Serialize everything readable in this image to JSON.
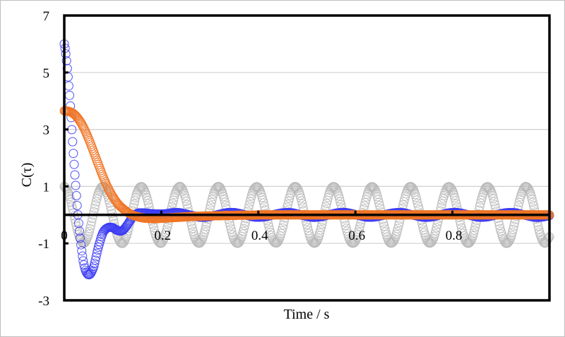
{
  "chart_data": {
    "type": "scatter",
    "title": "",
    "xlabel": "Time / s",
    "ylabel": "C(τ)",
    "xlim": [
      0,
      1
    ],
    "ylim": [
      -3,
      7
    ],
    "xticks": [
      {
        "value": 0,
        "label": "0"
      },
      {
        "value": 0.2,
        "label": "0.2"
      },
      {
        "value": 0.4,
        "label": "0.4"
      },
      {
        "value": 0.6,
        "label": "0.6"
      },
      {
        "value": 0.8,
        "label": "0.8"
      }
    ],
    "yticks": [
      {
        "value": 7,
        "label": "7"
      },
      {
        "value": 5,
        "label": "5"
      },
      {
        "value": 3,
        "label": "3"
      },
      {
        "value": 1,
        "label": "1"
      },
      {
        "value": -1,
        "label": "-1"
      },
      {
        "value": -3,
        "label": "-3"
      }
    ],
    "grid": {
      "horizontal": true,
      "vertical": false,
      "lines_at": [
        5,
        3,
        1,
        -1
      ]
    },
    "legend": null,
    "marker": "open-circle",
    "x_step": 0.01,
    "x": [
      0,
      0.01,
      0.02,
      0.03,
      0.04,
      0.05,
      0.06,
      0.07,
      0.08,
      0.09,
      0.1,
      0.11,
      0.12,
      0.13,
      0.14,
      0.15,
      0.16,
      0.17,
      0.18,
      0.19,
      0.2,
      0.21,
      0.22,
      0.23,
      0.24,
      0.25,
      0.26,
      0.27,
      0.28,
      0.29,
      0.3,
      0.31,
      0.32,
      0.33,
      0.34,
      0.35,
      0.36,
      0.37,
      0.38,
      0.39,
      0.4,
      0.41,
      0.42,
      0.43,
      0.44,
      0.45,
      0.46,
      0.47,
      0.48,
      0.49,
      0.5,
      0.51,
      0.52,
      0.53,
      0.54,
      0.55,
      0.56,
      0.57,
      0.58,
      0.59,
      0.6,
      0.61,
      0.62,
      0.63,
      0.64,
      0.65,
      0.66,
      0.67,
      0.68,
      0.69,
      0.7,
      0.71,
      0.72,
      0.73,
      0.74,
      0.75,
      0.76,
      0.77,
      0.78,
      0.79,
      0.8,
      0.81,
      0.82,
      0.83,
      0.84,
      0.85,
      0.86,
      0.87,
      0.88,
      0.89,
      0.9,
      0.91,
      0.92,
      0.93,
      0.94,
      0.95,
      0.96,
      0.97,
      0.98,
      0.99,
      1.0
    ],
    "series": [
      {
        "name": "gray-cosine",
        "color": "#b8b8b8",
        "values": [
          1.0,
          0.7,
          -0.01,
          -0.72,
          -1.0,
          -0.68,
          0.04,
          0.74,
          1.0,
          0.66,
          -0.07,
          -0.76,
          -1.0,
          -0.64,
          0.1,
          0.78,
          0.99,
          0.62,
          -0.12,
          -0.79,
          -0.99,
          -0.59,
          0.15,
          0.81,
          0.99,
          0.58,
          -0.18,
          -0.83,
          -0.98,
          -0.55,
          0.21,
          0.84,
          0.98,
          0.53,
          -0.23,
          -0.86,
          -0.97,
          -0.5,
          0.26,
          0.87,
          0.96,
          0.48,
          -0.29,
          -0.88,
          -0.95,
          -0.46,
          0.31,
          0.9,
          0.95,
          0.43,
          -0.34,
          -0.91,
          -0.94,
          -0.41,
          0.36,
          0.92,
          0.93,
          0.38,
          -0.39,
          -0.93,
          -0.92,
          -0.36,
          0.41,
          0.94,
          0.9,
          0.33,
          -0.44,
          -0.95,
          -0.89,
          -0.31,
          0.46,
          0.96,
          0.88,
          0.28,
          -0.49,
          -0.96,
          -0.87,
          -0.25,
          0.51,
          0.97,
          0.85,
          0.23,
          -0.54,
          -0.98,
          -0.84,
          -0.2,
          0.56,
          0.98,
          0.82,
          0.17,
          -0.58,
          -0.99,
          -0.81,
          -0.14,
          0.6,
          0.99,
          0.79,
          0.12,
          -0.63,
          -0.99,
          -0.77
        ]
      },
      {
        "name": "blue",
        "color": "#3c3cf5",
        "values": [
          6.0,
          4.4,
          1.85,
          -0.35,
          -1.7,
          -2.1,
          -1.85,
          -1.15,
          -0.62,
          -0.45,
          -0.45,
          -0.55,
          -0.55,
          -0.35,
          -0.1,
          0.05,
          0.07,
          0.06,
          0.04,
          0.03,
          0.03,
          0.04,
          0.07,
          0.08,
          0.07,
          0.03,
          -0.01,
          -0.05,
          -0.08,
          -0.08,
          -0.06,
          -0.02,
          0.02,
          0.06,
          0.08,
          0.08,
          0.05,
          0.01,
          -0.03,
          -0.07,
          -0.08,
          -0.07,
          -0.04,
          0.0,
          0.04,
          0.07,
          0.08,
          0.07,
          0.03,
          -0.01,
          -0.05,
          -0.08,
          -0.08,
          -0.06,
          -0.02,
          0.02,
          0.06,
          0.08,
          0.08,
          0.05,
          0.01,
          -0.03,
          -0.07,
          -0.08,
          -0.07,
          -0.04,
          0.0,
          0.04,
          0.07,
          0.08,
          0.07,
          0.03,
          -0.01,
          -0.05,
          -0.08,
          -0.08,
          -0.06,
          -0.02,
          0.02,
          0.06,
          0.08,
          0.08,
          0.05,
          0.01,
          -0.03,
          -0.07,
          -0.08,
          -0.07,
          -0.04,
          0.0,
          0.04,
          0.07,
          0.08,
          0.07,
          0.03,
          -0.01,
          -0.05,
          -0.08,
          -0.08,
          -0.06,
          -0.02
        ]
      },
      {
        "name": "orange",
        "color": "#f07424",
        "values": [
          3.65,
          3.63,
          3.54,
          3.35,
          3.06,
          2.68,
          2.24,
          1.78,
          1.34,
          0.95,
          0.64,
          0.4,
          0.23,
          0.1,
          0.0,
          -0.06,
          -0.1,
          -0.12,
          -0.13,
          -0.13,
          -0.12,
          -0.11,
          -0.1,
          -0.09,
          -0.08,
          -0.07,
          -0.06,
          -0.05,
          -0.05,
          -0.04,
          -0.04,
          -0.03,
          -0.03,
          -0.02,
          -0.02,
          -0.02,
          -0.01,
          -0.01,
          -0.01,
          -0.01,
          0.0,
          0.0,
          0.0,
          0.0,
          0.0,
          0.0,
          0.0,
          0.0,
          0.0,
          0.0,
          0.0,
          0.0,
          0.0,
          0.0,
          0.0,
          0.0,
          0.0,
          0.0,
          0.0,
          0.0,
          0.0,
          0.0,
          0.0,
          0.0,
          0.0,
          0.0,
          0.0,
          0.0,
          0.0,
          0.0,
          0.0,
          0.0,
          0.0,
          0.0,
          0.0,
          0.0,
          0.0,
          0.0,
          0.0,
          0.0,
          0.0,
          0.0,
          0.0,
          0.0,
          0.0,
          0.0,
          0.0,
          0.0,
          0.0,
          0.0,
          0.0,
          0.0,
          0.0,
          0.0,
          0.0,
          0.0,
          0.0,
          0.0,
          0.0,
          0.0,
          0.0
        ]
      }
    ]
  },
  "colors": {
    "axis": "#000000",
    "grid": "#d0d0d0",
    "frame_border": "#bfbfbf"
  }
}
